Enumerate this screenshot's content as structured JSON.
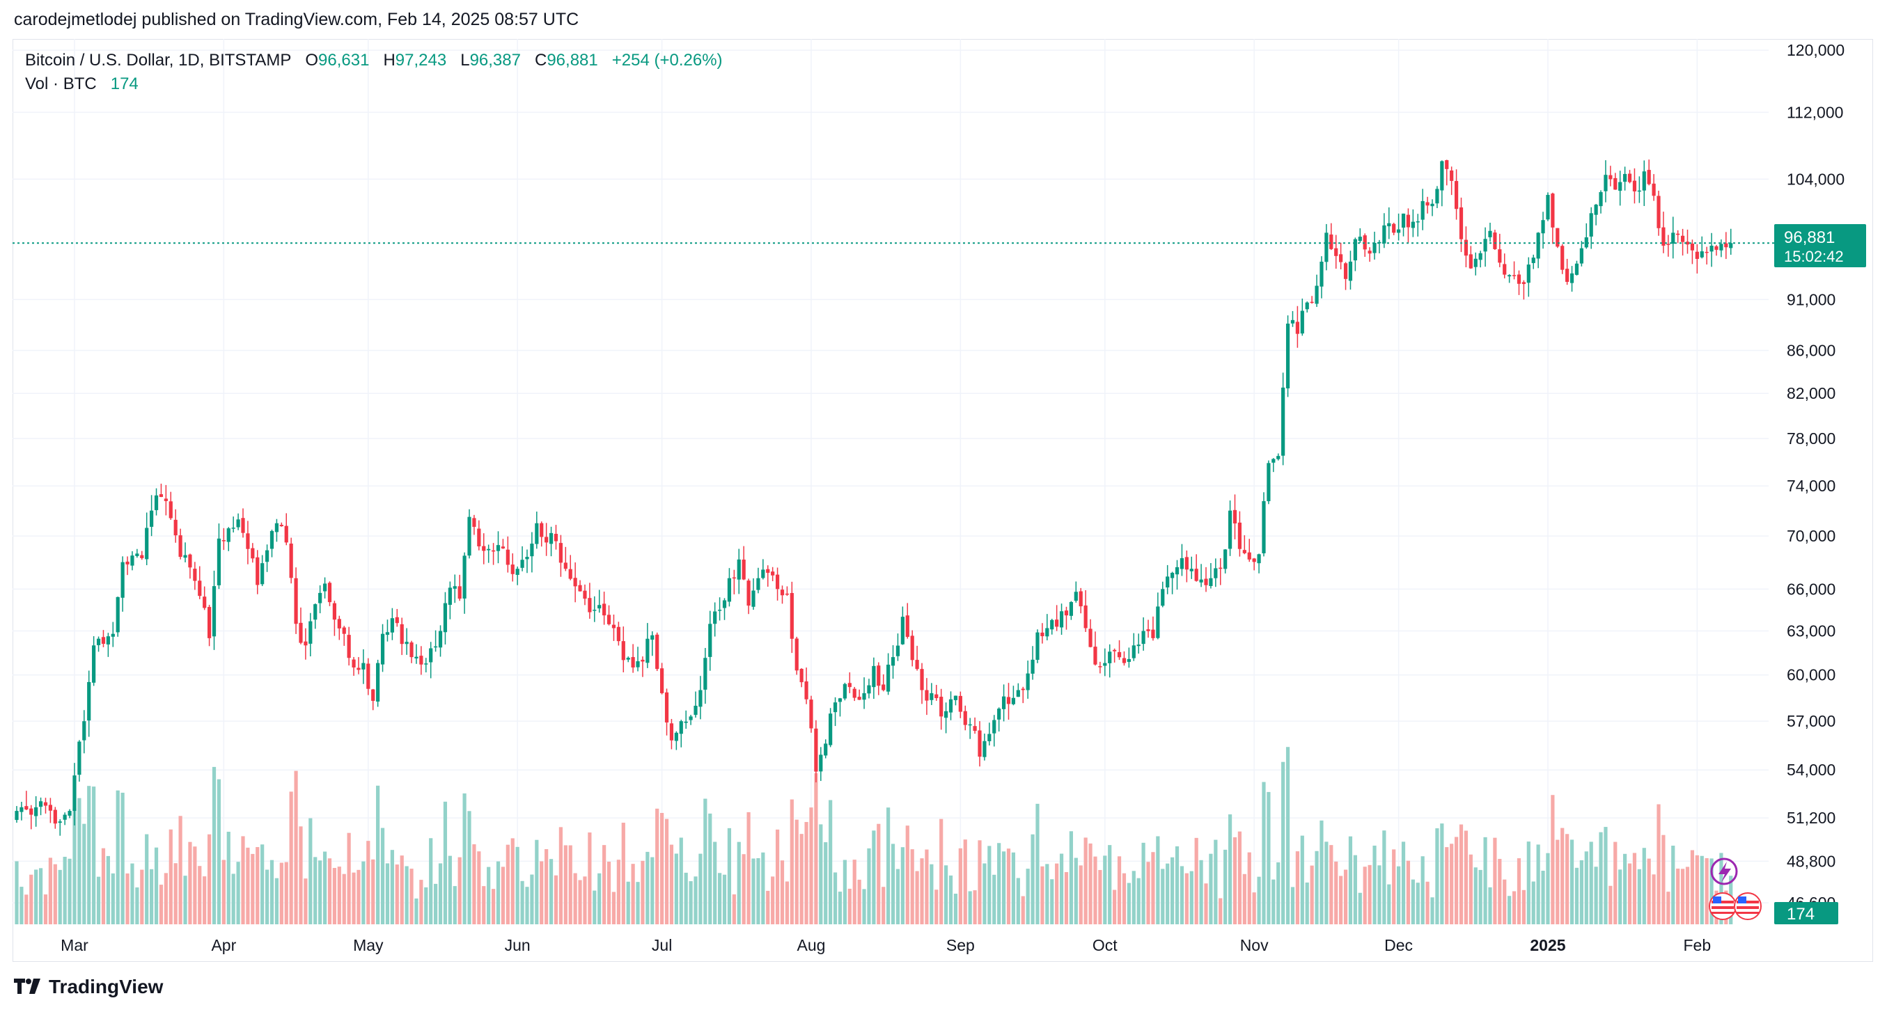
{
  "publisher_line": "carodejmetlodej published on TradingView.com, Feb 14, 2025 08:57 UTC",
  "legend": {
    "symbol": "Bitcoin / U.S. Dollar, 1D, BITSTAMP",
    "open_label": "O",
    "open": "96,631",
    "high_label": "H",
    "high": "97,243",
    "low_label": "L",
    "low": "96,387",
    "close_label": "C",
    "close": "96,881",
    "change": "+254 (+0.26%)",
    "vol_label": "Vol · BTC",
    "vol_value": "174"
  },
  "price_badge": {
    "price": "96,881",
    "countdown": "15:02:42"
  },
  "volume_badge": "174",
  "footer_brand": "TradingView",
  "colors": {
    "up": "#089981",
    "down": "#f23645",
    "vol_up": "#92d2c9",
    "vol_down": "#f7a9a7",
    "grid": "#f0f3fa"
  },
  "chart_data": {
    "type": "candlestick",
    "scale": "logarithmic",
    "grid": true,
    "y_ticks": [
      120000,
      112000,
      104000,
      91000,
      86000,
      82000,
      78000,
      74000,
      70000,
      66000,
      63000,
      60000,
      57000,
      54000,
      51200,
      48800,
      46600
    ],
    "y_tick_labels": [
      "120,000",
      "112,000",
      "104,000",
      "91,000",
      "86,000",
      "82,000",
      "78,000",
      "74,000",
      "70,000",
      "66,000",
      "63,000",
      "60,000",
      "57,000",
      "54,000",
      "51,200",
      "48,800",
      "46,600"
    ],
    "ylim": [
      45500,
      121500
    ],
    "x_ticks": [
      {
        "label": "Mar",
        "day": 12,
        "bold": false
      },
      {
        "label": "Apr",
        "day": 43,
        "bold": false
      },
      {
        "label": "May",
        "day": 73,
        "bold": false
      },
      {
        "label": "Jun",
        "day": 104,
        "bold": false
      },
      {
        "label": "Jul",
        "day": 134,
        "bold": false
      },
      {
        "label": "Aug",
        "day": 165,
        "bold": false
      },
      {
        "label": "Sep",
        "day": 196,
        "bold": false
      },
      {
        "label": "Oct",
        "day": 226,
        "bold": false
      },
      {
        "label": "Nov",
        "day": 257,
        "bold": false
      },
      {
        "label": "Dec",
        "day": 287,
        "bold": false
      },
      {
        "label": "2025",
        "day": 318,
        "bold": true
      },
      {
        "label": "Feb",
        "day": 349,
        "bold": false
      }
    ],
    "current_price": 96881,
    "date_range": [
      "2024-02-18",
      "2025-02-14"
    ],
    "close_anchors": [
      [
        0,
        51600
      ],
      [
        6,
        51900
      ],
      [
        9,
        51000
      ],
      [
        11,
        51600
      ],
      [
        14,
        57000
      ],
      [
        16,
        62000
      ],
      [
        20,
        62800
      ],
      [
        22,
        68000
      ],
      [
        24,
        68500
      ],
      [
        26,
        68300
      ],
      [
        28,
        72000
      ],
      [
        30,
        73100
      ],
      [
        32,
        71400
      ],
      [
        34,
        68400
      ],
      [
        36,
        67600
      ],
      [
        38,
        65500
      ],
      [
        40,
        62500
      ],
      [
        42,
        69800
      ],
      [
        44,
        70600
      ],
      [
        46,
        71300
      ],
      [
        48,
        69000
      ],
      [
        50,
        66300
      ],
      [
        52,
        68900
      ],
      [
        54,
        71000
      ],
      [
        56,
        69500
      ],
      [
        58,
        63500
      ],
      [
        60,
        62000
      ],
      [
        62,
        64900
      ],
      [
        64,
        66400
      ],
      [
        66,
        63800
      ],
      [
        68,
        62800
      ],
      [
        70,
        60500
      ],
      [
        72,
        60800
      ],
      [
        74,
        58300
      ],
      [
        76,
        62800
      ],
      [
        78,
        63900
      ],
      [
        80,
        62100
      ],
      [
        82,
        61200
      ],
      [
        84,
        60700
      ],
      [
        86,
        61800
      ],
      [
        88,
        63000
      ],
      [
        90,
        66100
      ],
      [
        92,
        65300
      ],
      [
        94,
        71500
      ],
      [
        96,
        69200
      ],
      [
        98,
        69000
      ],
      [
        100,
        69300
      ],
      [
        102,
        67800
      ],
      [
        104,
        67500
      ],
      [
        106,
        68400
      ],
      [
        108,
        71000
      ],
      [
        110,
        69500
      ],
      [
        112,
        69600
      ],
      [
        114,
        67500
      ],
      [
        116,
        66200
      ],
      [
        118,
        65300
      ],
      [
        120,
        64500
      ],
      [
        122,
        64100
      ],
      [
        124,
        63200
      ],
      [
        126,
        61000
      ],
      [
        128,
        60500
      ],
      [
        130,
        60900
      ],
      [
        132,
        62700
      ],
      [
        134,
        58800
      ],
      [
        136,
        55800
      ],
      [
        138,
        57000
      ],
      [
        140,
        57300
      ],
      [
        142,
        59000
      ],
      [
        144,
        63500
      ],
      [
        146,
        64500
      ],
      [
        148,
        66800
      ],
      [
        150,
        68200
      ],
      [
        152,
        64800
      ],
      [
        154,
        66800
      ],
      [
        156,
        67200
      ],
      [
        158,
        66000
      ],
      [
        160,
        65600
      ],
      [
        162,
        60300
      ],
      [
        164,
        58400
      ],
      [
        166,
        53900
      ],
      [
        168,
        55600
      ],
      [
        170,
        58200
      ],
      [
        172,
        59400
      ],
      [
        174,
        58500
      ],
      [
        176,
        58800
      ],
      [
        178,
        60600
      ],
      [
        180,
        59000
      ],
      [
        182,
        61200
      ],
      [
        184,
        64000
      ],
      [
        186,
        61000
      ],
      [
        188,
        59000
      ],
      [
        190,
        58800
      ],
      [
        192,
        57300
      ],
      [
        194,
        58400
      ],
      [
        196,
        57600
      ],
      [
        198,
        56800
      ],
      [
        200,
        54800
      ],
      [
        202,
        56200
      ],
      [
        204,
        57800
      ],
      [
        206,
        58100
      ],
      [
        208,
        59000
      ],
      [
        210,
        60100
      ],
      [
        212,
        62900
      ],
      [
        214,
        63200
      ],
      [
        216,
        63300
      ],
      [
        218,
        64100
      ],
      [
        220,
        65800
      ],
      [
        222,
        63200
      ],
      [
        224,
        60700
      ],
      [
        226,
        60800
      ],
      [
        228,
        61600
      ],
      [
        230,
        60800
      ],
      [
        232,
        62000
      ],
      [
        234,
        63000
      ],
      [
        236,
        62500
      ],
      [
        238,
        66000
      ],
      [
        240,
        67200
      ],
      [
        242,
        68300
      ],
      [
        244,
        67500
      ],
      [
        246,
        66700
      ],
      [
        248,
        66800
      ],
      [
        250,
        67500
      ],
      [
        252,
        72000
      ],
      [
        254,
        69000
      ],
      [
        256,
        68200
      ],
      [
        258,
        68600
      ],
      [
        260,
        75900
      ],
      [
        262,
        76500
      ],
      [
        264,
        88600
      ],
      [
        266,
        87600
      ],
      [
        268,
        90700
      ],
      [
        270,
        92400
      ],
      [
        272,
        98000
      ],
      [
        274,
        95500
      ],
      [
        276,
        93100
      ],
      [
        278,
        97300
      ],
      [
        280,
        96200
      ],
      [
        282,
        96900
      ],
      [
        284,
        98800
      ],
      [
        286,
        98000
      ],
      [
        288,
        100100
      ],
      [
        290,
        99200
      ],
      [
        292,
        101500
      ],
      [
        294,
        101200
      ],
      [
        296,
        106100
      ],
      [
        298,
        103800
      ],
      [
        300,
        97300
      ],
      [
        302,
        94200
      ],
      [
        304,
        95800
      ],
      [
        306,
        98200
      ],
      [
        308,
        94800
      ],
      [
        310,
        93500
      ],
      [
        312,
        92600
      ],
      [
        314,
        94600
      ],
      [
        316,
        98000
      ],
      [
        318,
        102200
      ],
      [
        320,
        96500
      ],
      [
        322,
        92800
      ],
      [
        324,
        94700
      ],
      [
        326,
        97500
      ],
      [
        328,
        101100
      ],
      [
        330,
        104500
      ],
      [
        332,
        102800
      ],
      [
        334,
        104600
      ],
      [
        336,
        102600
      ],
      [
        338,
        104900
      ],
      [
        340,
        102100
      ],
      [
        342,
        96600
      ],
      [
        344,
        98000
      ],
      [
        346,
        97000
      ],
      [
        348,
        96100
      ],
      [
        350,
        96000
      ],
      [
        352,
        96600
      ],
      [
        354,
        96800
      ],
      [
        356,
        96881
      ]
    ],
    "volume_max": 40
  }
}
